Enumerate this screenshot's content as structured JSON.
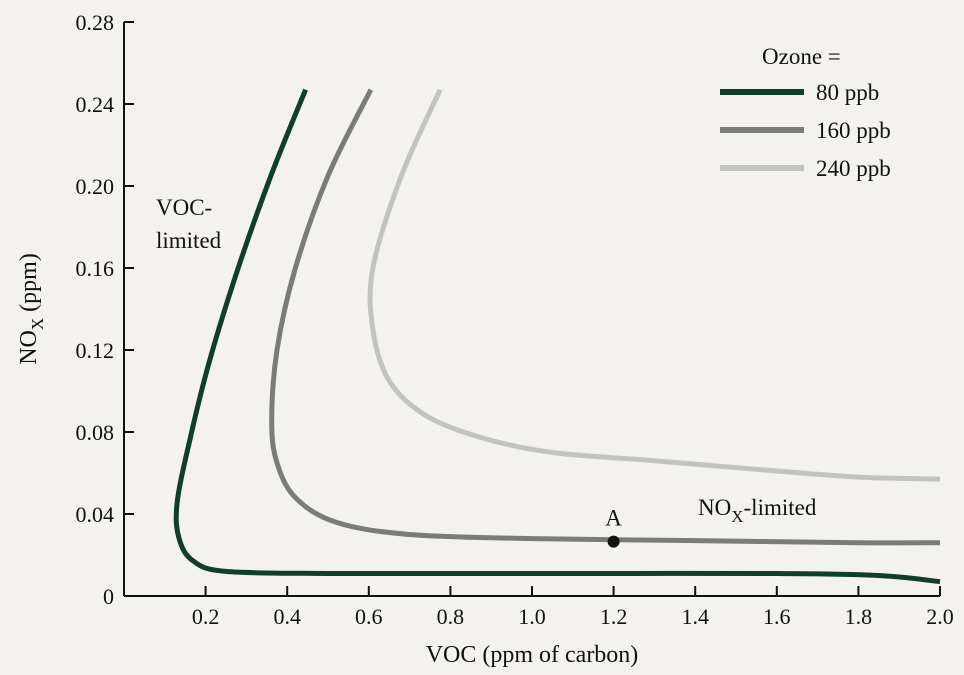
{
  "chart_data": {
    "type": "line",
    "xlabel": "VOC (ppm of carbon)",
    "ylabel_main": "NO",
    "ylabel_sub": "X",
    "ylabel_unit": " (ppm)",
    "xlim": [
      0.0,
      2.0
    ],
    "ylim": [
      0.0,
      0.28
    ],
    "x_ticks": [
      0.2,
      0.4,
      0.6,
      0.8,
      1.0,
      1.2,
      1.4,
      1.6,
      1.8,
      2.0
    ],
    "x_tick_labels": [
      "0.2",
      "0.4",
      "0.6",
      "0.8",
      "1.0",
      "1.2",
      "1.4",
      "1.6",
      "1.8",
      "2.0"
    ],
    "y_ticks": [
      0,
      0.04,
      0.08,
      0.12,
      0.16,
      0.2,
      0.24,
      0.28
    ],
    "y_tick_labels": [
      "0",
      "0.04",
      "0.08",
      "0.12",
      "0.16",
      "0.20",
      "0.24",
      "0.28"
    ],
    "grid": false,
    "legend": {
      "title": "Ozone =",
      "placement": "top-right",
      "entries": [
        "80 ppb",
        "160 ppb",
        "240 ppb"
      ]
    },
    "series": [
      {
        "name": "80 ppb",
        "color": "#0f3d2e",
        "points": [
          [
            0.445,
            0.247
          ],
          [
            0.36,
            0.205
          ],
          [
            0.28,
            0.16
          ],
          [
            0.21,
            0.115
          ],
          [
            0.16,
            0.075
          ],
          [
            0.13,
            0.045
          ],
          [
            0.135,
            0.028
          ],
          [
            0.17,
            0.017
          ],
          [
            0.25,
            0.012
          ],
          [
            0.5,
            0.011
          ],
          [
            0.8,
            0.011
          ],
          [
            1.2,
            0.011
          ],
          [
            1.6,
            0.011
          ],
          [
            1.85,
            0.01
          ],
          [
            2.0,
            0.007
          ]
        ]
      },
      {
        "name": "160 ppb",
        "color": "#7b7b78",
        "points": [
          [
            0.605,
            0.247
          ],
          [
            0.5,
            0.205
          ],
          [
            0.42,
            0.16
          ],
          [
            0.375,
            0.12
          ],
          [
            0.362,
            0.085
          ],
          [
            0.375,
            0.065
          ],
          [
            0.42,
            0.048
          ],
          [
            0.52,
            0.036
          ],
          [
            0.7,
            0.03
          ],
          [
            1.0,
            0.028
          ],
          [
            1.4,
            0.027
          ],
          [
            1.8,
            0.026
          ],
          [
            2.0,
            0.026
          ]
        ]
      },
      {
        "name": "240 ppb",
        "color": "#c3c3be",
        "points": [
          [
            0.775,
            0.247
          ],
          [
            0.68,
            0.205
          ],
          [
            0.61,
            0.16
          ],
          [
            0.61,
            0.13
          ],
          [
            0.65,
            0.105
          ],
          [
            0.74,
            0.088
          ],
          [
            0.88,
            0.077
          ],
          [
            1.05,
            0.07
          ],
          [
            1.3,
            0.066
          ],
          [
            1.6,
            0.061
          ],
          [
            1.8,
            0.058
          ],
          [
            2.0,
            0.057
          ]
        ]
      }
    ],
    "annotations": {
      "voc_limited_line1": "VOC-",
      "voc_limited_line2": "limited",
      "nox_limited_main": "NO",
      "nox_limited_sub": "X",
      "nox_limited_rest": "-limited",
      "point_label": "A",
      "point_A": {
        "x": 1.2,
        "y": 0.0265
      }
    }
  }
}
